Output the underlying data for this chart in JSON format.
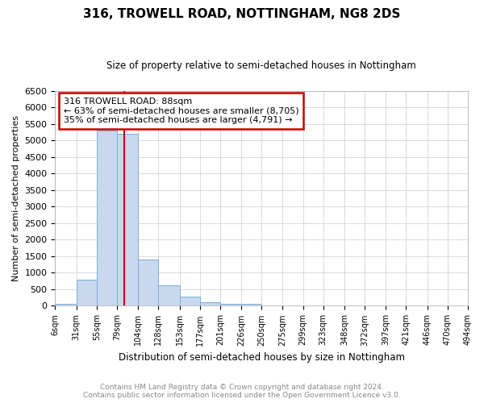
{
  "title": "316, TROWELL ROAD, NOTTINGHAM, NG8 2DS",
  "subtitle": "Size of property relative to semi-detached houses in Nottingham",
  "xlabel": "Distribution of semi-detached houses by size in Nottingham",
  "ylabel": "Number of semi-detached properties",
  "property_size": 88,
  "annotation_line1": "316 TROWELL ROAD: 88sqm",
  "annotation_line2": "← 63% of semi-detached houses are smaller (8,705)",
  "annotation_line3": "35% of semi-detached houses are larger (4,791) →",
  "bar_color": "#c8d8ee",
  "bar_edge_color": "#7aafd4",
  "vline_color": "#cc0000",
  "annotation_box_color": "#ffffff",
  "annotation_box_edge": "#cc0000",
  "footer_text": "Contains HM Land Registry data © Crown copyright and database right 2024.\nContains public sector information licensed under the Open Government Licence v3.0.",
  "ylim": [
    0,
    6500
  ],
  "yticks": [
    0,
    500,
    1000,
    1500,
    2000,
    2500,
    3000,
    3500,
    4000,
    4500,
    5000,
    5500,
    6000,
    6500
  ],
  "bin_edges": [
    6,
    31,
    55,
    79,
    104,
    128,
    153,
    177,
    201,
    226,
    250,
    275,
    299,
    323,
    348,
    372,
    397,
    421,
    446,
    470,
    494
  ],
  "bin_labels": [
    "6sqm",
    "31sqm",
    "55sqm",
    "79sqm",
    "104sqm",
    "128sqm",
    "153sqm",
    "177sqm",
    "201sqm",
    "226sqm",
    "250sqm",
    "275sqm",
    "299sqm",
    "323sqm",
    "348sqm",
    "372sqm",
    "397sqm",
    "421sqm",
    "446sqm",
    "470sqm",
    "494sqm"
  ],
  "bar_heights": [
    50,
    780,
    5300,
    5200,
    1400,
    620,
    270,
    100,
    50,
    50,
    20,
    10,
    5,
    0,
    0,
    0,
    0,
    0,
    0,
    0
  ]
}
